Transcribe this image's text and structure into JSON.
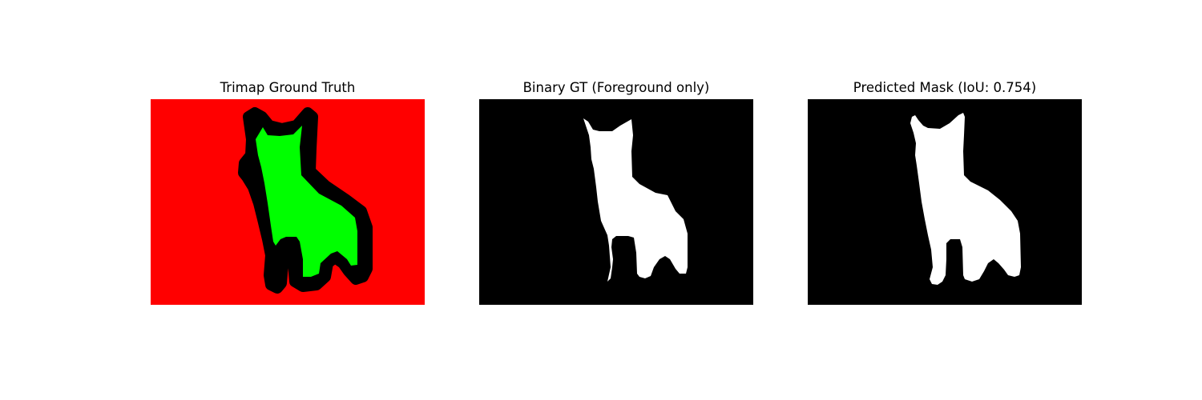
{
  "figure": {
    "panels": [
      {
        "title": "Trimap Ground Truth",
        "kind": "trimap",
        "colors": {
          "background": "#ff0000",
          "boundary": "#000000",
          "foreground": "#00ff00"
        }
      },
      {
        "title": "Binary GT (Foreground only)",
        "kind": "binary-mask",
        "colors": {
          "background": "#000000",
          "foreground": "#ffffff"
        }
      },
      {
        "title": "Predicted Mask (IoU: 0.754)",
        "kind": "predicted-mask",
        "colors": {
          "background": "#000000",
          "foreground": "#ffffff"
        }
      }
    ]
  }
}
